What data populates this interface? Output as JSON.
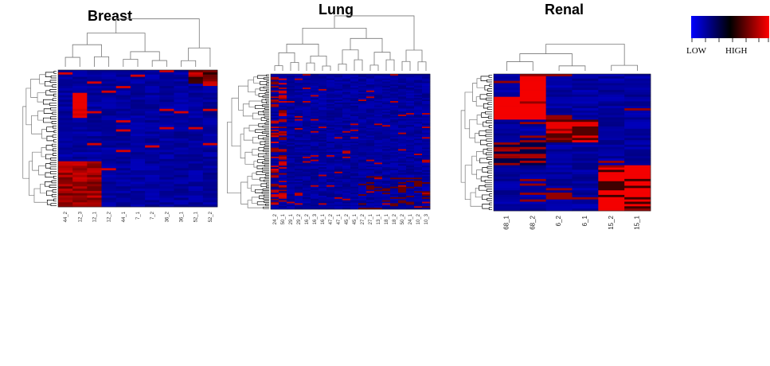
{
  "chart_data": [
    {
      "type": "heatmap",
      "title": "Breast",
      "columns": [
        "44_2",
        "12_3",
        "12_1",
        "12_2",
        "44_1",
        "7_1",
        "7_2",
        "36_2",
        "36_1",
        "52_1",
        "52_2"
      ],
      "row_count": 60
    },
    {
      "type": "heatmap",
      "title": "Lung",
      "columns": [
        "24_2",
        "50_1",
        "29_1",
        "29_2",
        "16_2",
        "16_3",
        "16_1",
        "47_2",
        "47_1",
        "45_2",
        "45_1",
        "27_2",
        "27_1",
        "13_1",
        "18_1",
        "18_2",
        "50_2",
        "24_1",
        "10_2",
        "10_3"
      ],
      "row_count": 90
    },
    {
      "type": "heatmap",
      "title": "Renal",
      "columns": [
        "68_1",
        "68_2",
        "6_2",
        "6_1",
        "15_2",
        "15_1"
      ],
      "row_count": 60
    }
  ],
  "legend": {
    "low_label": "LOW",
    "high_label": "HIGH",
    "colors": [
      "#0000ff",
      "#000000",
      "#ff0000"
    ]
  }
}
